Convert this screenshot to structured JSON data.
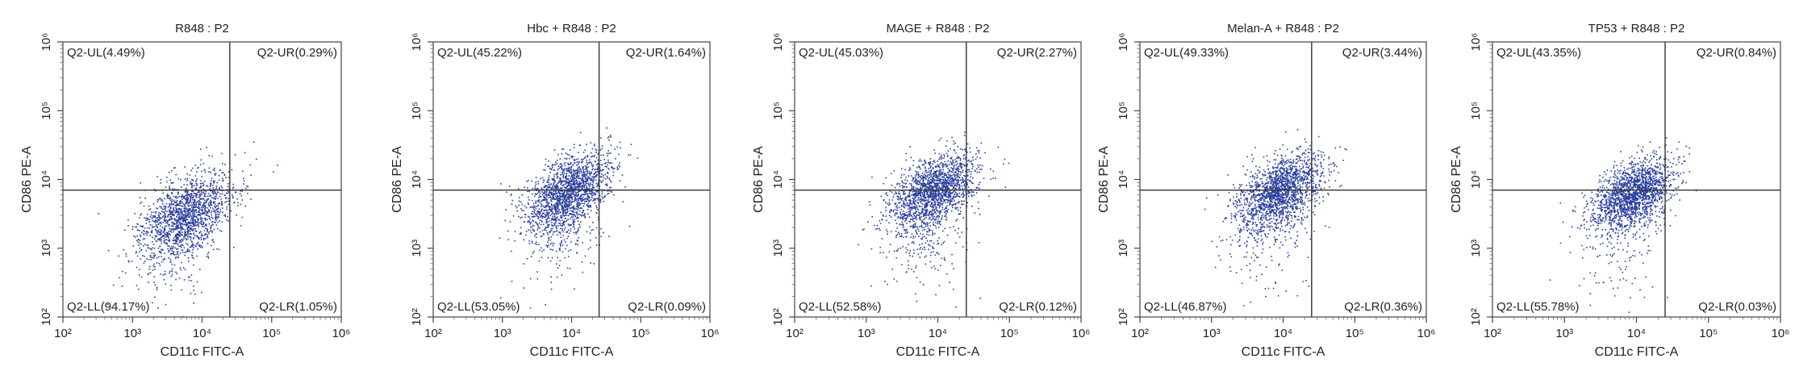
{
  "chart_data": [
    {
      "type": "scatter",
      "title": "R848 : P2",
      "xlabel": "CD11c FITC-A",
      "ylabel": "CD86 PE-A",
      "scale": "log",
      "xlim": [
        100,
        1000000
      ],
      "ylim": [
        100,
        1000000
      ],
      "ticks": [
        "10²",
        "10³",
        "10⁴",
        "10⁵",
        "10⁶"
      ],
      "gate": {
        "x": 25000,
        "y": 7000
      },
      "quadrants": {
        "UL": "Q2-UL(4.49%)",
        "UR": "Q2-UR(0.29%)",
        "LL": "Q2-LL(94.17%)",
        "LR": "Q2-LR(1.05%)"
      },
      "population": {
        "center_x": 6000,
        "center_y": 3200,
        "spread": 0.33,
        "count": 1700
      },
      "point_color": "#2b3f9e"
    },
    {
      "type": "scatter",
      "title": "Hbc + R848 : P2",
      "xlabel": "CD11c FITC-A",
      "ylabel": "CD86 PE-A",
      "scale": "log",
      "xlim": [
        100,
        1000000
      ],
      "ylim": [
        100,
        1000000
      ],
      "ticks": [
        "10²",
        "10³",
        "10⁴",
        "10⁵",
        "10⁶"
      ],
      "gate": {
        "x": 25000,
        "y": 7000
      },
      "quadrants": {
        "UL": "Q2-UL(45.22%)",
        "UR": "Q2-UR(1.64%)",
        "LL": "Q2-LL(53.05%)",
        "LR": "Q2-LR(0.09%)"
      },
      "population": {
        "center_x": 9000,
        "center_y": 6800,
        "spread": 0.3,
        "count": 1900
      },
      "point_color": "#2b3f9e"
    },
    {
      "type": "scatter",
      "title": "MAGE + R848 : P2",
      "xlabel": "CD11c FITC-A",
      "ylabel": "CD86 PE-A",
      "scale": "log",
      "xlim": [
        100,
        1000000
      ],
      "ylim": [
        100,
        1000000
      ],
      "ticks": [
        "10²",
        "10³",
        "10⁴",
        "10⁵",
        "10⁶"
      ],
      "gate": {
        "x": 25000,
        "y": 7000
      },
      "quadrants": {
        "UL": "Q2-UL(45.03%)",
        "UR": "Q2-UR(2.27%)",
        "LL": "Q2-LL(52.58%)",
        "LR": "Q2-LR(0.12%)"
      },
      "population": {
        "center_x": 9000,
        "center_y": 6900,
        "spread": 0.3,
        "count": 1900
      },
      "point_color": "#2b3f9e"
    },
    {
      "type": "scatter",
      "title": "Melan-A + R848 : P2",
      "xlabel": "CD11c FITC-A",
      "ylabel": "CD86 PE-A",
      "scale": "log",
      "xlim": [
        100,
        1000000
      ],
      "ylim": [
        100,
        1000000
      ],
      "ticks": [
        "10²",
        "10³",
        "10⁴",
        "10⁵",
        "10⁶"
      ],
      "gate": {
        "x": 25000,
        "y": 7000
      },
      "quadrants": {
        "UL": "Q2-UL(49.33%)",
        "UR": "Q2-UR(3.44%)",
        "LL": "Q2-LL(46.87%)",
        "LR": "Q2-LR(0.36%)"
      },
      "population": {
        "center_x": 9000,
        "center_y": 7000,
        "spread": 0.3,
        "count": 1900
      },
      "point_color": "#2b3f9e"
    },
    {
      "type": "scatter",
      "title": "TP53 + R848 : P2",
      "xlabel": "CD11c FITC-A",
      "ylabel": "CD86 PE-A",
      "scale": "log",
      "xlim": [
        100,
        1000000
      ],
      "ylim": [
        100,
        1000000
      ],
      "ticks": [
        "10²",
        "10³",
        "10⁴",
        "10⁵",
        "10⁶"
      ],
      "gate": {
        "x": 25000,
        "y": 7000
      },
      "quadrants": {
        "UL": "Q2-UL(43.35%)",
        "UR": "Q2-UR(0.84%)",
        "LL": "Q2-LL(55.78%)",
        "LR": "Q2-LR(0.03%)"
      },
      "population": {
        "center_x": 9000,
        "center_y": 6500,
        "spread": 0.28,
        "count": 1900
      },
      "point_color": "#2b3f9e"
    }
  ]
}
